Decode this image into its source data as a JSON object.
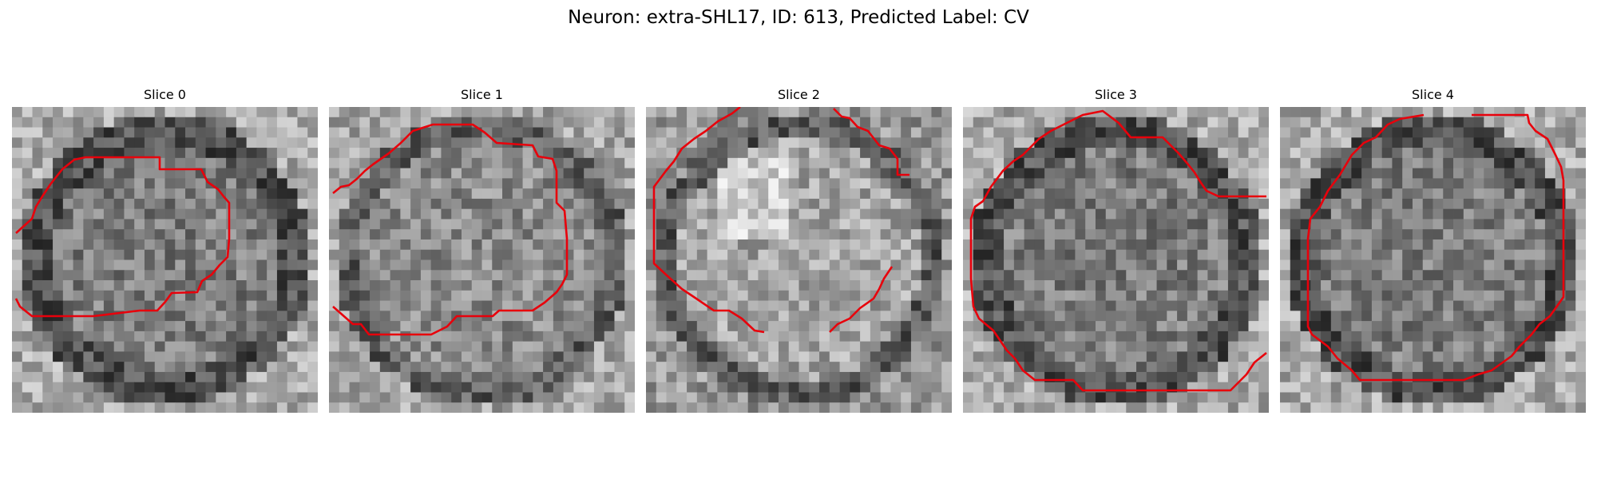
{
  "figure": {
    "title": "Neuron: extra-SHL17, ID: 613, Predicted Label: CV"
  },
  "slices": [
    {
      "title": "Slice 0"
    },
    {
      "title": "Slice 1"
    },
    {
      "title": "Slice 2"
    },
    {
      "title": "Slice 3"
    },
    {
      "title": "Slice 4"
    }
  ],
  "colors": {
    "contour": "#e8000b",
    "colormap": "gray"
  }
}
